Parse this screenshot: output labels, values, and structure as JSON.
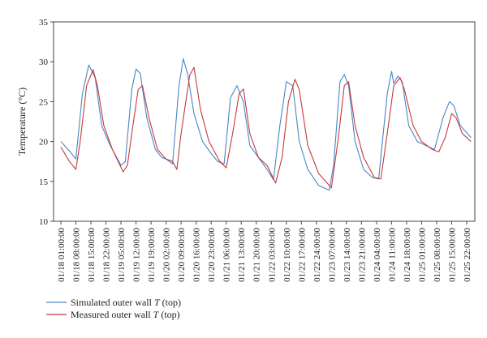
{
  "chart_data": {
    "type": "line",
    "title": "",
    "xlabel": "",
    "ylabel": "Temperature (°C)",
    "ylim": [
      10,
      35
    ],
    "yticks": [
      10,
      15,
      20,
      25,
      30,
      35
    ],
    "grid": false,
    "legend_position": "bottom-left",
    "x_tick_labels": [
      "01/18 01:00:00",
      "01/18 08:00:00",
      "01/18 15:00:00",
      "01/18 22:00:00",
      "01/19 05:00:00",
      "01/19 12:00:00",
      "01/19 19:00:00",
      "01/20 02:00:00",
      "01/20 09:00:00",
      "01/20 16:00:00",
      "01/20 23:00:00",
      "01/21 06:00:00",
      "01/21 13:00:00",
      "01/21 20:00:00",
      "01/22 03:00:00",
      "01/22 10:00:00",
      "01/22 17:00:00",
      "01/22 24:00:00",
      "01/23 07:00:00",
      "01/23 14:00:00",
      "01/23 21:00:00",
      "01/24 04:00:00",
      "01/24 11:00:00",
      "01/24 18:00:00",
      "01/25 01:00:00",
      "01/25 08:00:00",
      "01/25 15:00:00",
      "01/25 22:00:00"
    ],
    "series": [
      {
        "name_prefix": "Simulated outer wall ",
        "name_var": "T",
        "name_suffix": " (top)",
        "color": "#4a86c5",
        "points": [
          [
            "01/18 01:00:00",
            20
          ],
          [
            "01/18 05:00:00",
            18.8
          ],
          [
            "01/18 08:00:00",
            17.8
          ],
          [
            "01/18 11:00:00",
            26
          ],
          [
            "01/18 14:00:00",
            29.6
          ],
          [
            "01/18 17:00:00",
            28
          ],
          [
            "01/18 20:00:00",
            22
          ],
          [
            "01/18 24:00:00",
            19.5
          ],
          [
            "01/19 03:00:00",
            18
          ],
          [
            "01/19 05:00:00",
            17
          ],
          [
            "01/19 07:00:00",
            17.5
          ],
          [
            "01/19 10:00:00",
            26.5
          ],
          [
            "01/19 12:00:00",
            29.1
          ],
          [
            "01/19 14:00:00",
            28.5
          ],
          [
            "01/19 17:00:00",
            23
          ],
          [
            "01/19 21:00:00",
            19
          ],
          [
            "01/19 24:00:00",
            18
          ],
          [
            "01/20 02:00:00",
            17.8
          ],
          [
            "01/20 05:00:00",
            17.2
          ],
          [
            "01/20 08:00:00",
            27
          ],
          [
            "01/20 10:00:00",
            30.4
          ],
          [
            "01/20 12:00:00",
            28.5
          ],
          [
            "01/20 15:00:00",
            23.5
          ],
          [
            "01/20 19:00:00",
            20
          ],
          [
            "01/20 23:00:00",
            18.5
          ],
          [
            "01/21 02:00:00",
            17.5
          ],
          [
            "01/21 05:00:00",
            17.2
          ],
          [
            "01/21 08:00:00",
            25.5
          ],
          [
            "01/21 11:00:00",
            27
          ],
          [
            "01/21 14:00:00",
            25
          ],
          [
            "01/21 17:00:00",
            19.5
          ],
          [
            "01/21 21:00:00",
            18
          ],
          [
            "01/22 01:00:00",
            16.5
          ],
          [
            "01/22 04:00:00",
            15.2
          ],
          [
            "01/22 07:00:00",
            22
          ],
          [
            "01/22 10:00:00",
            27.5
          ],
          [
            "01/22 13:00:00",
            27
          ],
          [
            "01/22 16:00:00",
            20
          ],
          [
            "01/22 20:00:00",
            16.5
          ],
          [
            "01/23 01:00:00",
            14.5
          ],
          [
            "01/23 06:00:00",
            13.9
          ],
          [
            "01/23 08:00:00",
            17
          ],
          [
            "01/23 11:00:00",
            27.5
          ],
          [
            "01/23 13:00:00",
            28.4
          ],
          [
            "01/23 15:00:00",
            27
          ],
          [
            "01/23 18:00:00",
            20
          ],
          [
            "01/23 22:00:00",
            16.5
          ],
          [
            "01/24 02:00:00",
            15.5
          ],
          [
            "01/24 05:00:00",
            15.3
          ],
          [
            "01/24 09:00:00",
            26
          ],
          [
            "01/24 11:00:00",
            28.8
          ],
          [
            "01/24 12:00:00",
            27.3
          ],
          [
            "01/24 14:00:00",
            28.2
          ],
          [
            "01/24 16:00:00",
            27.5
          ],
          [
            "01/24 19:00:00",
            22
          ],
          [
            "01/24 23:00:00",
            20
          ],
          [
            "01/25 03:00:00",
            19.5
          ],
          [
            "01/25 07:00:00",
            19
          ],
          [
            "01/25 11:00:00",
            23
          ],
          [
            "01/25 14:00:00",
            25
          ],
          [
            "01/25 16:00:00",
            24.5
          ],
          [
            "01/25 19:00:00",
            22
          ],
          [
            "01/25 24:00:00",
            20.5
          ]
        ]
      },
      {
        "name_prefix": "Measured outer wall ",
        "name_var": "T",
        "name_suffix": " (top)",
        "color": "#c8383a",
        "points": [
          [
            "01/18 01:00:00",
            19.3
          ],
          [
            "01/18 05:00:00",
            17.5
          ],
          [
            "01/18 08:00:00",
            16.5
          ],
          [
            "01/18 10:00:00",
            20
          ],
          [
            "01/18 13:00:00",
            27
          ],
          [
            "01/18 16:00:00",
            29
          ],
          [
            "01/18 18:00:00",
            27
          ],
          [
            "01/18 21:00:00",
            22
          ],
          [
            "01/19 01:00:00",
            19
          ],
          [
            "01/19 06:00:00",
            16.2
          ],
          [
            "01/19 08:00:00",
            17
          ],
          [
            "01/19 10:00:00",
            21
          ],
          [
            "01/19 13:00:00",
            26.5
          ],
          [
            "01/19 15:00:00",
            27
          ],
          [
            "01/19 18:00:00",
            23
          ],
          [
            "01/19 22:00:00",
            19
          ],
          [
            "01/20 02:00:00",
            17.8
          ],
          [
            "01/20 05:00:00",
            17.5
          ],
          [
            "01/20 07:00:00",
            16.5
          ],
          [
            "01/20 09:00:00",
            21
          ],
          [
            "01/20 13:00:00",
            28.3
          ],
          [
            "01/20 15:00:00",
            29.3
          ],
          [
            "01/20 18:00:00",
            24
          ],
          [
            "01/20 22:00:00",
            20
          ],
          [
            "01/21 03:00:00",
            17.5
          ],
          [
            "01/21 06:00:00",
            16.7
          ],
          [
            "01/21 09:00:00",
            21
          ],
          [
            "01/21 12:00:00",
            26
          ],
          [
            "01/21 14:00:00",
            26.6
          ],
          [
            "01/21 17:00:00",
            21
          ],
          [
            "01/21 21:00:00",
            18
          ],
          [
            "01/22 01:00:00",
            17
          ],
          [
            "01/22 05:00:00",
            14.8
          ],
          [
            "01/22 08:00:00",
            18
          ],
          [
            "01/22 11:00:00",
            25
          ],
          [
            "01/22 14:00:00",
            27.8
          ],
          [
            "01/22 16:00:00",
            26.5
          ],
          [
            "01/22 20:00:00",
            19.5
          ],
          [
            "01/23 01:00:00",
            16
          ],
          [
            "01/23 07:00:00",
            14.2
          ],
          [
            "01/23 10:00:00",
            20
          ],
          [
            "01/23 13:00:00",
            27
          ],
          [
            "01/23 15:00:00",
            27.5
          ],
          [
            "01/23 18:00:00",
            22
          ],
          [
            "01/23 22:00:00",
            18
          ],
          [
            "01/24 03:00:00",
            15.5
          ],
          [
            "01/24 06:00:00",
            15.3
          ],
          [
            "01/24 09:00:00",
            21
          ],
          [
            "01/24 12:00:00",
            27
          ],
          [
            "01/24 15:00:00",
            28
          ],
          [
            "01/24 17:00:00",
            26.5
          ],
          [
            "01/24 21:00:00",
            22
          ],
          [
            "01/25 01:00:00",
            20
          ],
          [
            "01/25 06:00:00",
            19
          ],
          [
            "01/25 09:00:00",
            18.7
          ],
          [
            "01/25 12:00:00",
            20.5
          ],
          [
            "01/25 15:00:00",
            23.5
          ],
          [
            "01/25 17:00:00",
            23
          ],
          [
            "01/25 20:00:00",
            21
          ],
          [
            "01/25 24:00:00",
            20
          ]
        ]
      }
    ]
  }
}
